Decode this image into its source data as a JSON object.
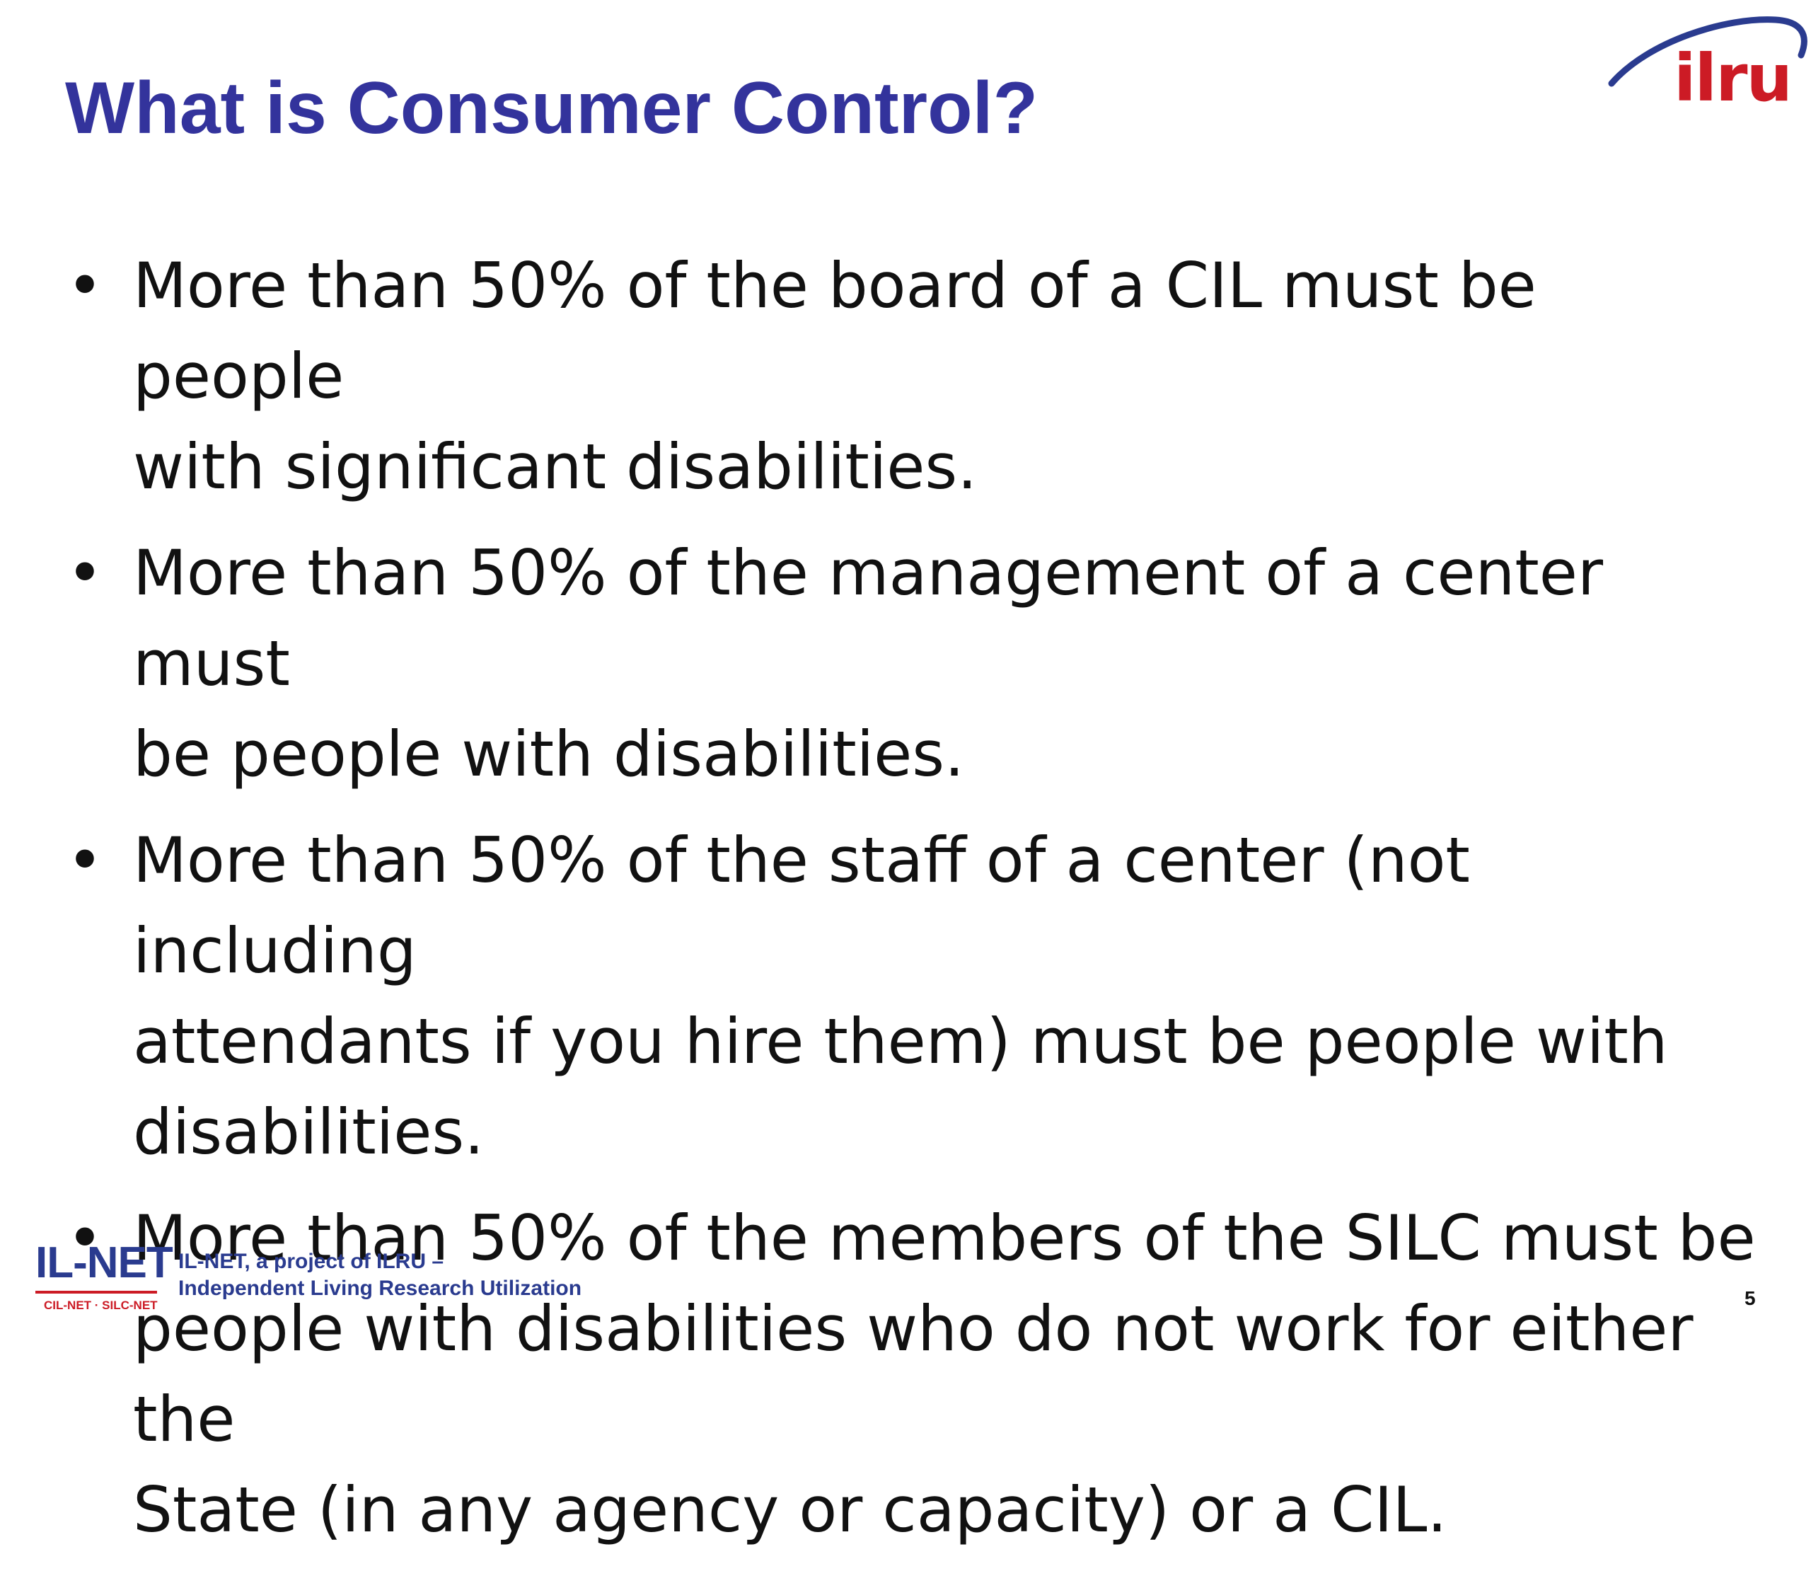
{
  "slide": {
    "title": "What is Consumer Control?",
    "logo_text": "ilru",
    "bullet_symbol": "•",
    "bullets": [
      {
        "line1": "More than 50% of the board of a CIL must be people",
        "line2": "with significant disabilities.",
        "line3": ""
      },
      {
        "line1": "More than 50% of the management of a center must",
        "line2": "be people with disabilities.",
        "line3": ""
      },
      {
        "line1": "More than 50% of the staff of a center (not including",
        "line2": "attendants if you hire them) must be people with",
        "line3": "disabilities."
      },
      {
        "line1": "More than 50% of the members of the SILC must be",
        "line2": "people with disabilities who do not work for either the",
        "line3": "State (in any agency or capacity) or a CIL."
      }
    ]
  },
  "footer": {
    "logo_main": "IL-NET",
    "logo_sub": "CIL-NET · SILC-NET",
    "text_line1": "IL-NET, a project of ILRU –",
    "text_line2": "Independent Living Research Utilization",
    "page_number": "5"
  },
  "colors": {
    "title": "#33339c",
    "logo_red": "#cc1b25",
    "logo_navy": "#2a3b8f",
    "body_text": "#111111"
  }
}
